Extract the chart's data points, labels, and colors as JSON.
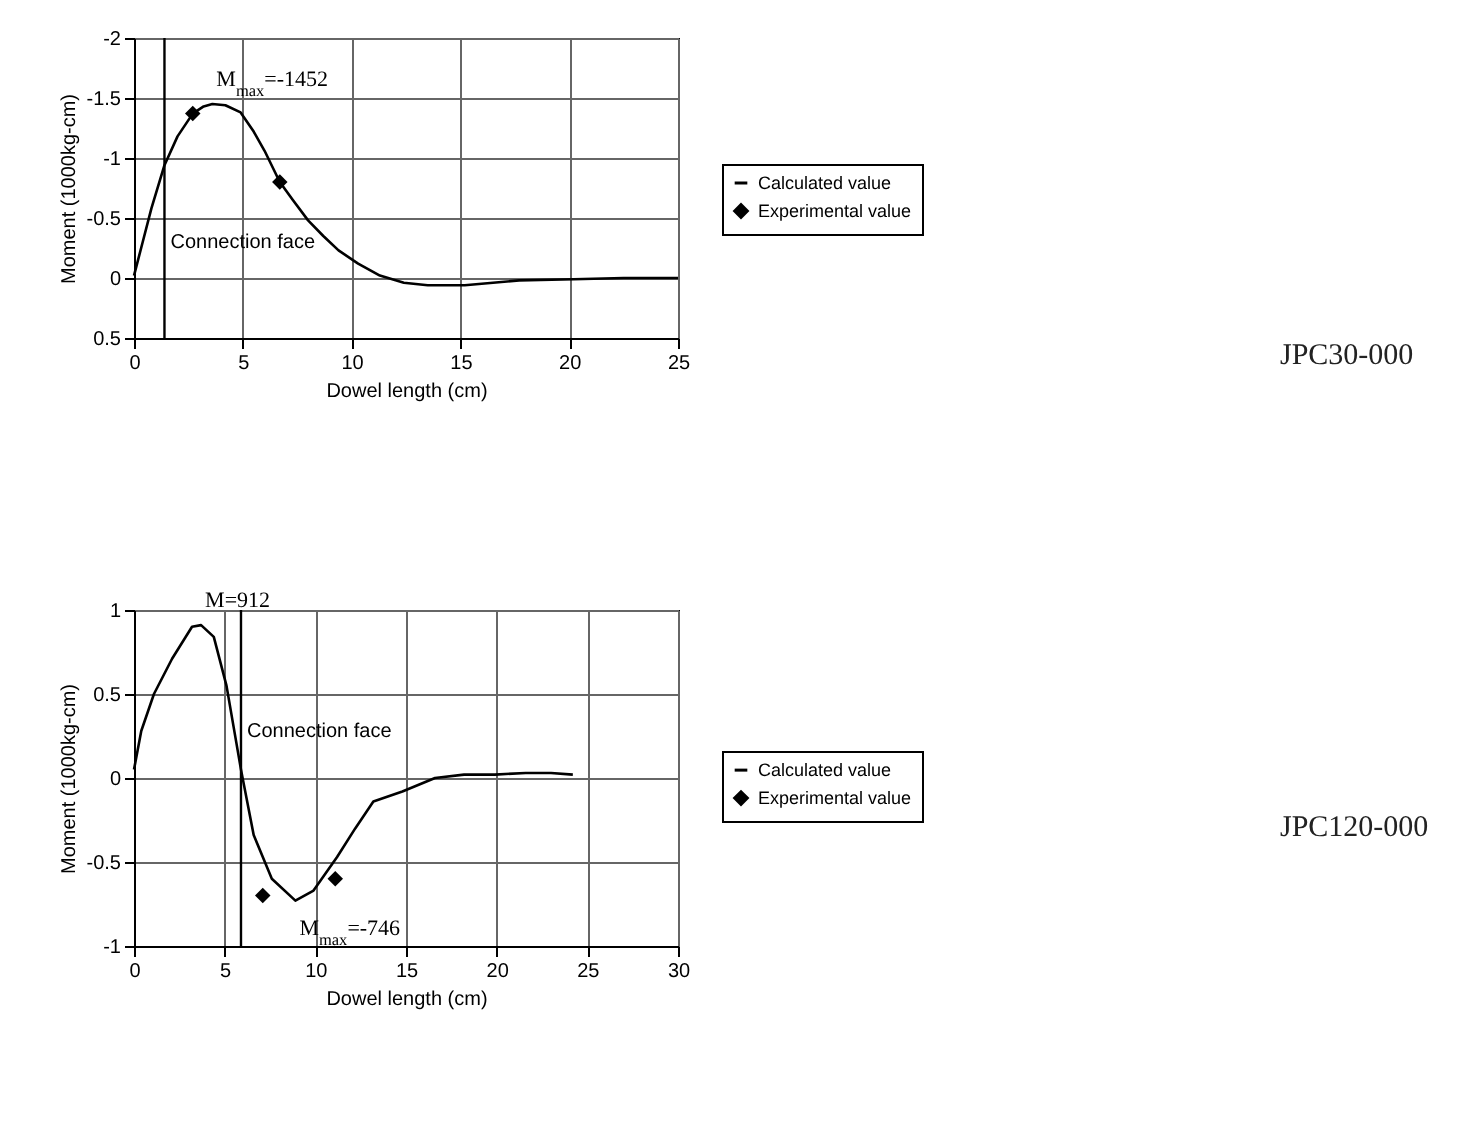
{
  "chart_data": [
    {
      "type": "line",
      "xlabel": "Dowel length (cm)",
      "ylabel": "Moment (1000kg-cm)",
      "xlim": [
        0,
        25
      ],
      "xticks": [
        0,
        5,
        10,
        15,
        20,
        25
      ],
      "ylim": [
        0.5,
        -2
      ],
      "yticks": [
        -2,
        -1.5,
        -1,
        -0.5,
        0,
        0.5
      ],
      "grid": true,
      "legend": "right",
      "series": [
        {
          "name": "Calculated value",
          "type": "line",
          "color": "#000000",
          "x": [
            0,
            0.4,
            0.8,
            1.4,
            2.0,
            2.7,
            3.2,
            3.6,
            4.2,
            4.9,
            5.5,
            6.0,
            6.7,
            7.3,
            8.0,
            8.7,
            9.4,
            10.3,
            11.3,
            12.4,
            13.5,
            15.2,
            16.5,
            17.7,
            20.2,
            22.5,
            25
          ],
          "values": [
            -0.02,
            -0.3,
            -0.58,
            -0.94,
            -1.18,
            -1.37,
            -1.43,
            -1.45,
            -1.44,
            -1.38,
            -1.22,
            -1.06,
            -0.8,
            -0.65,
            -0.48,
            -0.35,
            -0.23,
            -0.12,
            -0.02,
            0.04,
            0.06,
            0.06,
            0.04,
            0.02,
            0.01,
            0,
            0
          ]
        },
        {
          "name": "Experimental value",
          "type": "scatter",
          "marker": "diamond",
          "color": "#000000",
          "x": [
            2.7,
            6.7
          ],
          "values": [
            -1.37,
            -0.8
          ]
        }
      ],
      "ref_lines": [
        {
          "axis": "x",
          "value": 1.4,
          "label": "Connection face",
          "color": "#000000"
        }
      ],
      "annotations": [
        {
          "text": "M$_{max}$=-1452",
          "x": 3.6,
          "y": -1.45
        },
        "JPC30-000"
      ]
    },
    {
      "type": "line",
      "xlabel": "Dowel length (cm)",
      "ylabel": "Moment (1000kg-cm)",
      "xlim": [
        0,
        30
      ],
      "xticks": [
        0,
        5,
        10,
        15,
        20,
        25,
        30
      ],
      "ylim": [
        -1,
        1
      ],
      "yticks": [
        -1,
        -0.5,
        0,
        0.5,
        1
      ],
      "grid": true,
      "legend": "right",
      "series": [
        {
          "name": "Calculated value",
          "type": "line",
          "color": "#000000",
          "x": [
            0,
            0.4,
            1.1,
            2.1,
            3.2,
            3.7,
            4.4,
            5.1,
            5.5,
            5.9,
            6.6,
            7.6,
            8.9,
            9.9,
            11.2,
            12.2,
            13.2,
            14.8,
            16.6,
            18.2,
            19.9,
            21.6,
            23,
            24.2
          ],
          "values": [
            0.05,
            0.28,
            0.5,
            0.71,
            0.9,
            0.91,
            0.84,
            0.55,
            0.3,
            0.05,
            -0.34,
            -0.6,
            -0.73,
            -0.67,
            -0.47,
            -0.3,
            -0.14,
            -0.08,
            0,
            0.02,
            0.02,
            0.03,
            0.03,
            0.02
          ]
        },
        {
          "name": "Experimental value",
          "type": "scatter",
          "marker": "diamond",
          "color": "#000000",
          "x": [
            7.1,
            11.1
          ],
          "values": [
            -0.7,
            -0.6
          ]
        }
      ],
      "ref_lines": [
        {
          "axis": "x",
          "value": 5.9,
          "label": "Connection face",
          "color": "#000000"
        }
      ],
      "annotations": [
        {
          "text": "M=912",
          "x": 3.7,
          "y": 0.91
        },
        {
          "text": "M$_{max}$=-746",
          "x": 8.9,
          "y": -0.73
        },
        "JPC120-000"
      ]
    }
  ]
}
